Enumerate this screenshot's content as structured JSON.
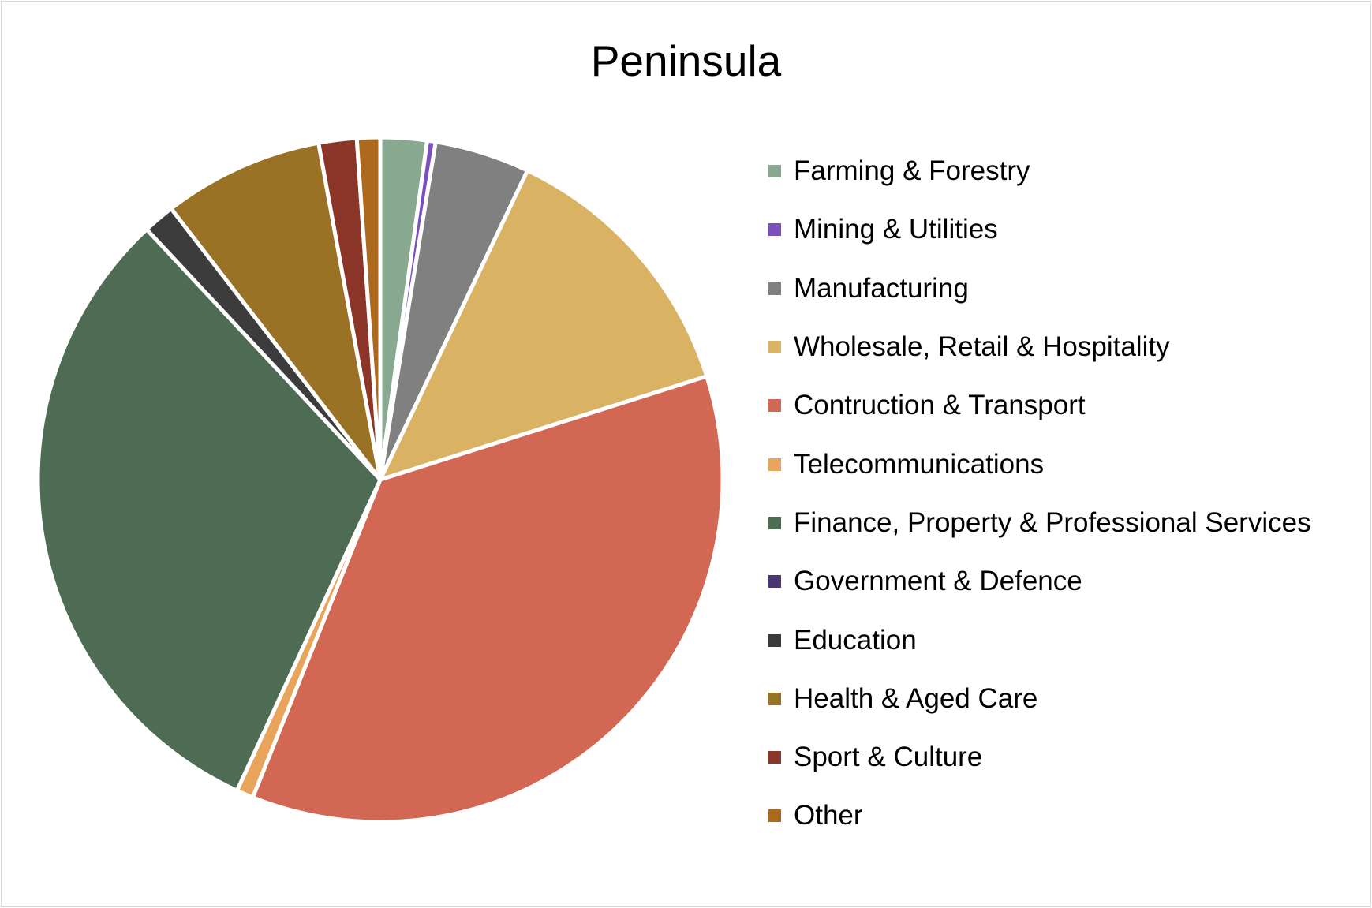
{
  "chart_data": {
    "type": "pie",
    "title": "Peninsula",
    "legend_position": "right",
    "categories": [
      "Farming & Forestry",
      "Mining & Utilities",
      "Manufacturing",
      "Wholesale, Retail & Hospitality",
      "Contruction & Transport",
      "Telecommunications",
      "Finance, Property & Professional Services",
      "Government & Defence",
      "Education",
      "Health & Aged Care",
      "Sport & Culture",
      "Other"
    ],
    "values": [
      2.2,
      0.4,
      4.5,
      13.1,
      36.1,
      0.8,
      31.3,
      0.0,
      1.5,
      7.6,
      1.8,
      1.1
    ],
    "colors": [
      "#88a890",
      "#7b4fbf",
      "#808080",
      "#d9b264",
      "#d26754",
      "#e7a45a",
      "#4e6b54",
      "#4a3673",
      "#3c3c3c",
      "#9a7226",
      "#8b3528",
      "#ad6a1f"
    ]
  }
}
